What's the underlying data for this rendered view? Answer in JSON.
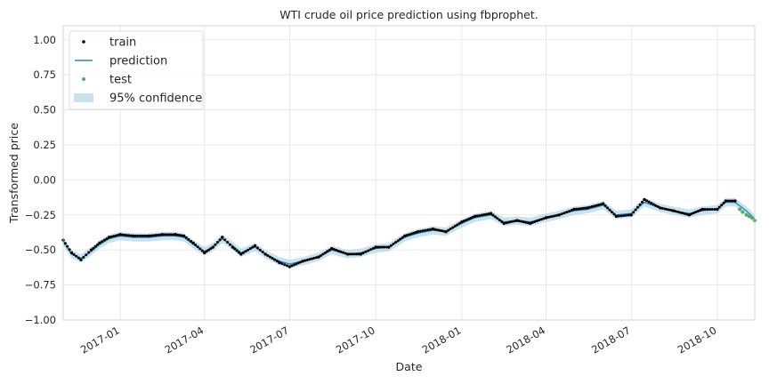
{
  "chart_data": {
    "type": "line",
    "title": "WTI crude oil price prediction using fbprophet.",
    "xlabel": "Date",
    "ylabel": "Transformed price",
    "xlim": [
      "2016-11-01",
      "2018-11-10"
    ],
    "ylim": [
      -1.0,
      1.1
    ],
    "yticks": [
      1.0,
      0.75,
      0.5,
      0.25,
      0.0,
      -0.25,
      -0.5,
      -0.75,
      -1.0
    ],
    "ytick_labels": [
      "1.00",
      "0.75",
      "0.50",
      "0.25",
      "0.00",
      "−0.25",
      "−0.50",
      "−0.75",
      "−1.00"
    ],
    "xticks": [
      "2017-01-01",
      "2017-04-01",
      "2017-07-01",
      "2017-10-01",
      "2018-01-01",
      "2018-04-01",
      "2018-07-01",
      "2018-10-01"
    ],
    "xtick_labels": [
      "2017-01",
      "2017-04",
      "2017-07",
      "2017-10",
      "2018-01",
      "2018-04",
      "2018-07",
      "2018-10"
    ],
    "grid": true,
    "legend_position": "top-left",
    "series": [
      {
        "name": "train",
        "kind": "points",
        "color": "#000000",
        "x": [
          "2016-11-01",
          "2016-11-10",
          "2016-11-20",
          "2016-12-01",
          "2016-12-10",
          "2016-12-20",
          "2017-01-01",
          "2017-01-15",
          "2017-02-01",
          "2017-02-15",
          "2017-03-01",
          "2017-03-10",
          "2017-03-20",
          "2017-04-01",
          "2017-04-10",
          "2017-04-20",
          "2017-05-01",
          "2017-05-10",
          "2017-05-25",
          "2017-06-05",
          "2017-06-20",
          "2017-07-01",
          "2017-07-15",
          "2017-08-01",
          "2017-08-15",
          "2017-09-01",
          "2017-09-15",
          "2017-10-01",
          "2017-10-15",
          "2017-11-01",
          "2017-11-15",
          "2017-12-01",
          "2017-12-15",
          "2018-01-01",
          "2018-01-15",
          "2018-02-01",
          "2018-02-15",
          "2018-03-01",
          "2018-03-15",
          "2018-04-01",
          "2018-04-15",
          "2018-05-01",
          "2018-05-15",
          "2018-06-01",
          "2018-06-15",
          "2018-07-01",
          "2018-07-15",
          "2018-08-01",
          "2018-08-15",
          "2018-09-01",
          "2018-09-15",
          "2018-10-01",
          "2018-10-10",
          "2018-10-20"
        ],
        "y": [
          -0.43,
          -0.52,
          -0.57,
          -0.5,
          -0.45,
          -0.41,
          -0.39,
          -0.4,
          -0.4,
          -0.39,
          -0.39,
          -0.4,
          -0.45,
          -0.52,
          -0.48,
          -0.41,
          -0.48,
          -0.53,
          -0.47,
          -0.53,
          -0.59,
          -0.62,
          -0.58,
          -0.55,
          -0.49,
          -0.53,
          -0.53,
          -0.48,
          -0.48,
          -0.4,
          -0.37,
          -0.35,
          -0.37,
          -0.3,
          -0.26,
          -0.24,
          -0.31,
          -0.29,
          -0.31,
          -0.27,
          -0.25,
          -0.21,
          -0.2,
          -0.17,
          -0.26,
          -0.25,
          -0.14,
          -0.2,
          -0.22,
          -0.25,
          -0.21,
          -0.21,
          -0.15,
          -0.15
        ]
      },
      {
        "name": "prediction",
        "kind": "line",
        "color": "#1f8bbf",
        "x": [
          "2016-11-01",
          "2016-11-10",
          "2016-11-20",
          "2016-12-01",
          "2016-12-10",
          "2016-12-20",
          "2017-01-01",
          "2017-01-15",
          "2017-02-01",
          "2017-02-15",
          "2017-03-01",
          "2017-03-10",
          "2017-03-20",
          "2017-04-01",
          "2017-04-10",
          "2017-04-20",
          "2017-05-01",
          "2017-05-10",
          "2017-05-25",
          "2017-06-05",
          "2017-06-20",
          "2017-07-01",
          "2017-07-15",
          "2017-08-01",
          "2017-08-15",
          "2017-09-01",
          "2017-09-15",
          "2017-10-01",
          "2017-10-15",
          "2017-11-01",
          "2017-11-15",
          "2017-12-01",
          "2017-12-15",
          "2018-01-01",
          "2018-01-15",
          "2018-02-01",
          "2018-02-15",
          "2018-03-01",
          "2018-03-15",
          "2018-04-01",
          "2018-04-15",
          "2018-05-01",
          "2018-05-15",
          "2018-06-01",
          "2018-06-15",
          "2018-07-01",
          "2018-07-15",
          "2018-08-01",
          "2018-08-15",
          "2018-09-01",
          "2018-09-15",
          "2018-10-01",
          "2018-10-10",
          "2018-10-20",
          "2018-11-01",
          "2018-11-10"
        ],
        "y": [
          -0.44,
          -0.53,
          -0.56,
          -0.51,
          -0.46,
          -0.42,
          -0.4,
          -0.41,
          -0.41,
          -0.4,
          -0.4,
          -0.41,
          -0.46,
          -0.51,
          -0.48,
          -0.42,
          -0.47,
          -0.52,
          -0.48,
          -0.53,
          -0.58,
          -0.6,
          -0.58,
          -0.55,
          -0.5,
          -0.53,
          -0.52,
          -0.49,
          -0.48,
          -0.41,
          -0.38,
          -0.36,
          -0.37,
          -0.31,
          -0.27,
          -0.25,
          -0.3,
          -0.29,
          -0.3,
          -0.27,
          -0.25,
          -0.22,
          -0.21,
          -0.18,
          -0.25,
          -0.24,
          -0.16,
          -0.2,
          -0.22,
          -0.24,
          -0.22,
          -0.21,
          -0.16,
          -0.16,
          -0.22,
          -0.28
        ]
      },
      {
        "name": "test",
        "kind": "points",
        "color": "#55a868",
        "x": [
          "2018-10-25",
          "2018-10-28",
          "2018-11-01",
          "2018-11-04",
          "2018-11-07",
          "2018-11-10"
        ],
        "y": [
          -0.21,
          -0.23,
          -0.25,
          -0.26,
          -0.27,
          -0.29
        ]
      },
      {
        "name": "95% confidence",
        "kind": "band",
        "color": "#a6cee3",
        "x": [
          "2016-11-01",
          "2016-11-10",
          "2016-11-20",
          "2016-12-01",
          "2016-12-10",
          "2016-12-20",
          "2017-01-01",
          "2017-01-15",
          "2017-02-01",
          "2017-02-15",
          "2017-03-01",
          "2017-03-10",
          "2017-03-20",
          "2017-04-01",
          "2017-04-10",
          "2017-04-20",
          "2017-05-01",
          "2017-05-10",
          "2017-05-25",
          "2017-06-05",
          "2017-06-20",
          "2017-07-01",
          "2017-07-15",
          "2017-08-01",
          "2017-08-15",
          "2017-09-01",
          "2017-09-15",
          "2017-10-01",
          "2017-10-15",
          "2017-11-01",
          "2017-11-15",
          "2017-12-01",
          "2017-12-15",
          "2018-01-01",
          "2018-01-15",
          "2018-02-01",
          "2018-02-15",
          "2018-03-01",
          "2018-03-15",
          "2018-04-01",
          "2018-04-15",
          "2018-05-01",
          "2018-05-15",
          "2018-06-01",
          "2018-06-15",
          "2018-07-01",
          "2018-07-15",
          "2018-08-01",
          "2018-08-15",
          "2018-09-01",
          "2018-09-15",
          "2018-10-01",
          "2018-10-10",
          "2018-10-20",
          "2018-11-01",
          "2018-11-10"
        ],
        "lower": [
          -0.47,
          -0.56,
          -0.59,
          -0.54,
          -0.49,
          -0.45,
          -0.43,
          -0.44,
          -0.44,
          -0.43,
          -0.43,
          -0.44,
          -0.49,
          -0.54,
          -0.51,
          -0.45,
          -0.5,
          -0.55,
          -0.51,
          -0.56,
          -0.61,
          -0.63,
          -0.61,
          -0.58,
          -0.53,
          -0.56,
          -0.55,
          -0.52,
          -0.51,
          -0.44,
          -0.41,
          -0.39,
          -0.4,
          -0.34,
          -0.3,
          -0.28,
          -0.33,
          -0.32,
          -0.33,
          -0.3,
          -0.28,
          -0.25,
          -0.24,
          -0.21,
          -0.28,
          -0.27,
          -0.19,
          -0.23,
          -0.25,
          -0.27,
          -0.25,
          -0.24,
          -0.19,
          -0.19,
          -0.25,
          -0.31
        ],
        "upper": [
          -0.41,
          -0.5,
          -0.53,
          -0.48,
          -0.43,
          -0.39,
          -0.37,
          -0.38,
          -0.38,
          -0.37,
          -0.37,
          -0.38,
          -0.43,
          -0.48,
          -0.45,
          -0.39,
          -0.44,
          -0.49,
          -0.45,
          -0.5,
          -0.55,
          -0.57,
          -0.55,
          -0.52,
          -0.47,
          -0.5,
          -0.49,
          -0.46,
          -0.45,
          -0.38,
          -0.35,
          -0.33,
          -0.34,
          -0.28,
          -0.24,
          -0.22,
          -0.27,
          -0.26,
          -0.27,
          -0.24,
          -0.22,
          -0.19,
          -0.18,
          -0.15,
          -0.22,
          -0.21,
          -0.13,
          -0.17,
          -0.19,
          -0.21,
          -0.19,
          -0.18,
          -0.13,
          -0.13,
          -0.19,
          -0.25
        ]
      }
    ]
  }
}
